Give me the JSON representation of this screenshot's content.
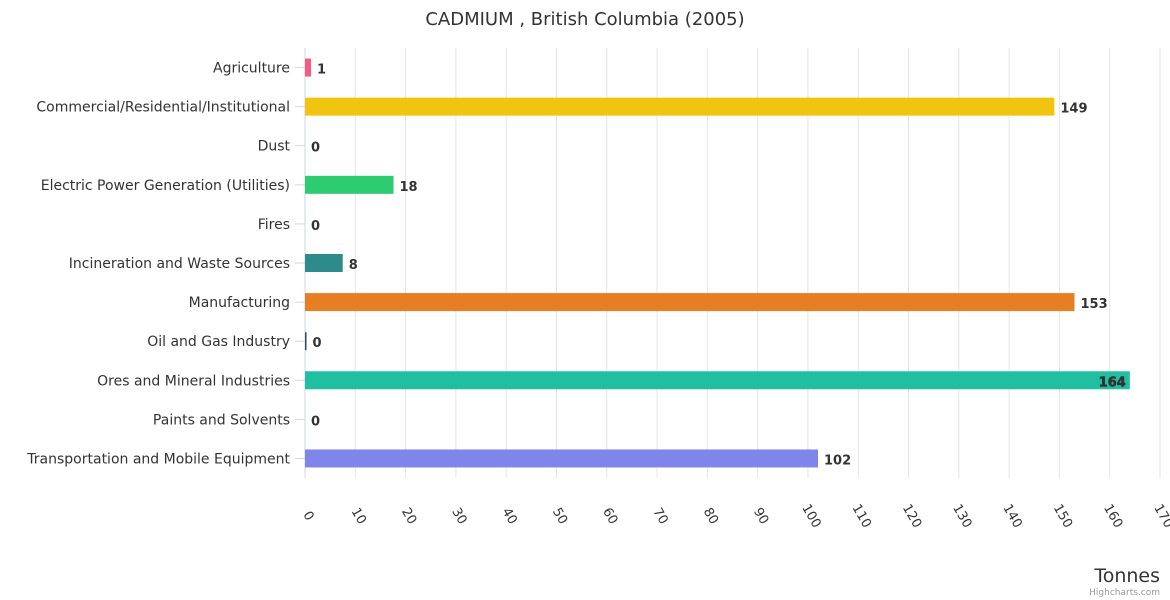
{
  "chart_data": {
    "type": "bar",
    "orientation": "horizontal",
    "title": "CADMIUM , British Columbia (2005)",
    "xlabel": "Tonnes",
    "ylabel": "",
    "xlim": [
      0,
      170
    ],
    "xticks": [
      0,
      10,
      20,
      30,
      40,
      50,
      60,
      70,
      80,
      90,
      100,
      110,
      120,
      130,
      140,
      150,
      160,
      170
    ],
    "grid": true,
    "legend": "none",
    "categories": [
      "Agriculture",
      "Commercial/Residential/Institutional",
      "Dust",
      "Electric Power Generation (Utilities)",
      "Fires",
      "Incineration and Waste Sources",
      "Manufacturing",
      "Oil and Gas Industry",
      "Ores and Mineral Industries",
      "Paints and Solvents",
      "Transportation and Mobile Equipment"
    ],
    "values": [
      1.2,
      149,
      0,
      17.6,
      0,
      7.5,
      153,
      0.3,
      164,
      0,
      102
    ],
    "data_labels": [
      "1",
      "149",
      "0",
      "18",
      "0",
      "8",
      "153",
      "0",
      "164",
      "0",
      "102"
    ],
    "colors": [
      "#f15c80",
      "#f1c40f",
      "#7f8c8d",
      "#2ecc71",
      "#e74c3c",
      "#2e8b8b",
      "#e67e22",
      "#34495e",
      "#1fbf9f",
      "#9b59b6",
      "#8085e9"
    ]
  },
  "credit": "Highcharts.com"
}
